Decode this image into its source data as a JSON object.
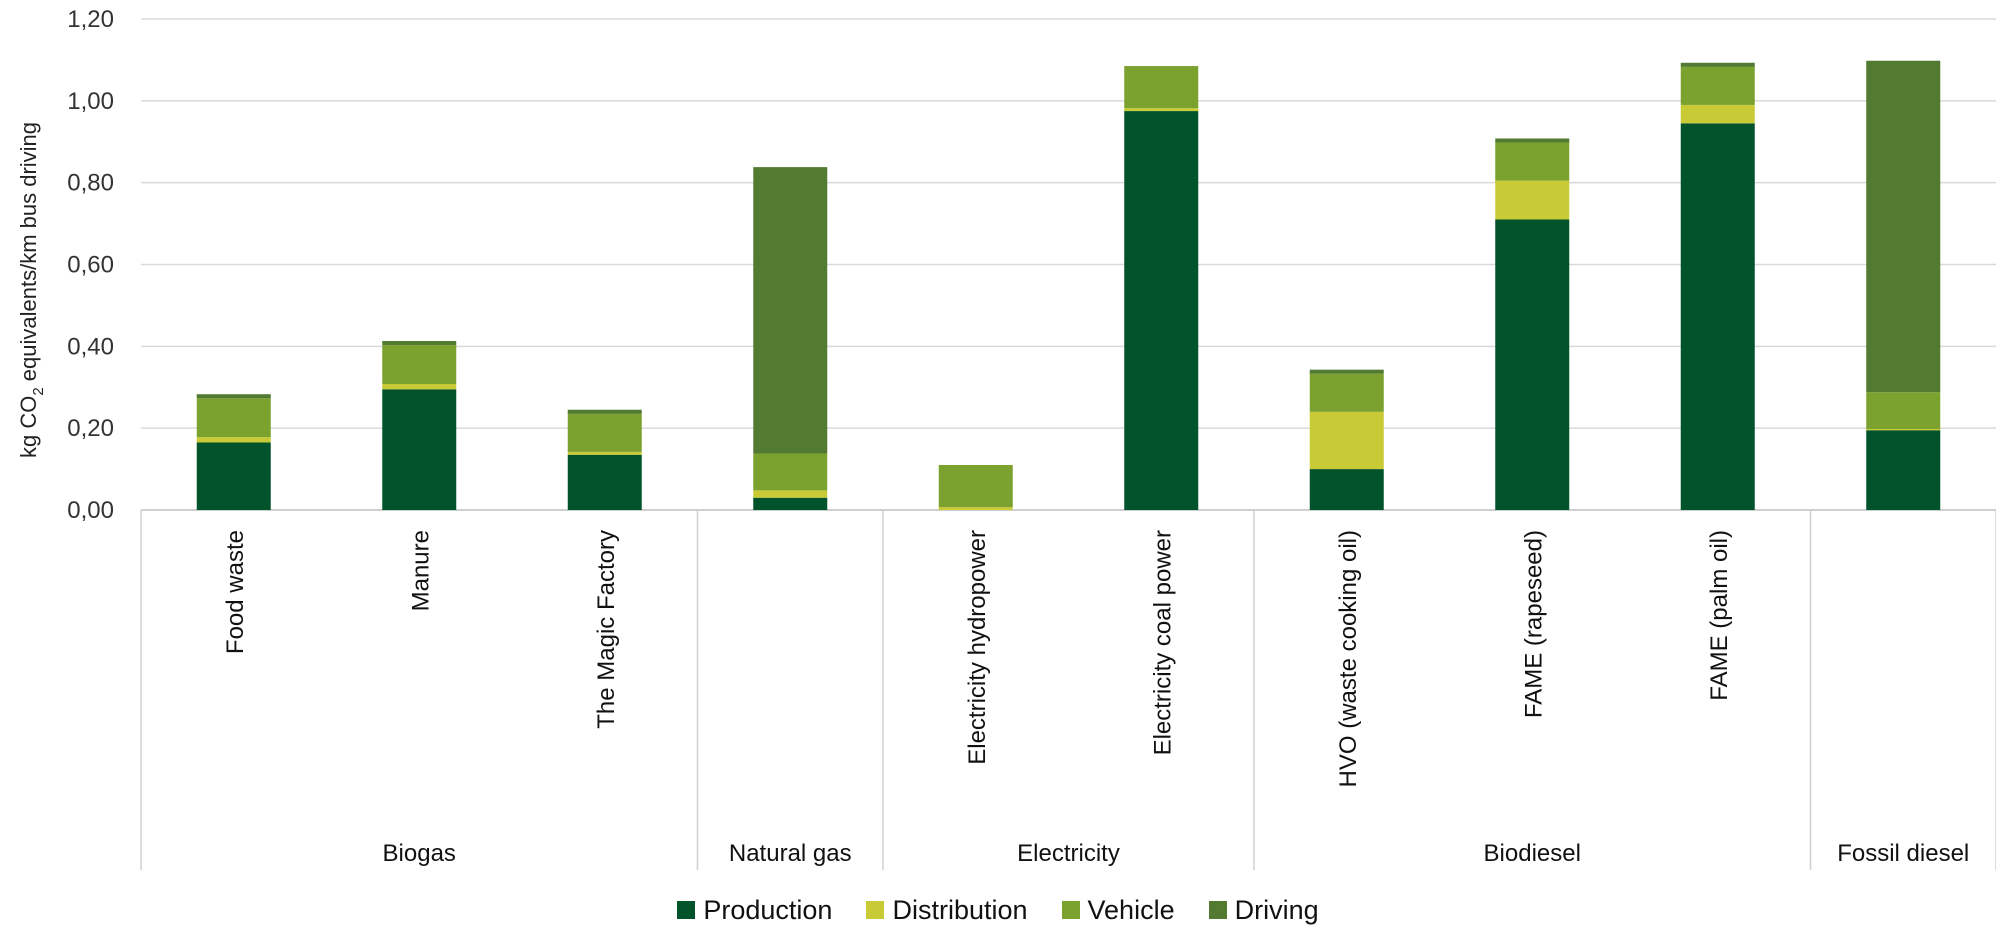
{
  "chart_data": {
    "type": "bar",
    "stacked": true,
    "ylabel": {
      "prefix": "kg CO",
      "subscript": "2",
      "suffix": " equivalents/km bus driving"
    },
    "ylim": [
      0,
      1.2
    ],
    "yticks": [
      "0,00",
      "0,20",
      "0,40",
      "0,60",
      "0,80",
      "1,00",
      "1,20"
    ],
    "grid": true,
    "legend_position": "bottom",
    "categories": [
      "Food waste",
      "Manure",
      "The Magic Factory",
      "",
      "Electricity hydropower",
      "Electricity coal power",
      "HVO (waste cooking oil)",
      "FAME (rapeseed)",
      "FAME (palm oil)",
      ""
    ],
    "groups": [
      {
        "name": "Biogas",
        "count": 3
      },
      {
        "name": "Natural gas",
        "count": 1
      },
      {
        "name": "Electricity",
        "count": 2
      },
      {
        "name": "Biodiesel",
        "count": 3
      },
      {
        "name": "Fossil diesel",
        "count": 1
      }
    ],
    "series": [
      {
        "name": "Production",
        "color": "#00532B",
        "values": [
          0.165,
          0.295,
          0.135,
          0.03,
          0.0,
          0.975,
          0.1,
          0.71,
          0.945,
          0.195
        ]
      },
      {
        "name": "Distribution",
        "color": "#C8CB35",
        "values": [
          0.013,
          0.013,
          0.007,
          0.018,
          0.007,
          0.007,
          0.14,
          0.095,
          0.045,
          0.003
        ]
      },
      {
        "name": "Vehicle",
        "color": "#7BA22F",
        "values": [
          0.095,
          0.095,
          0.093,
          0.09,
          0.103,
          0.103,
          0.093,
          0.093,
          0.093,
          0.09
        ]
      },
      {
        "name": "Driving",
        "color": "#527B31",
        "values": [
          0.01,
          0.01,
          0.01,
          0.7,
          0.0,
          0.0,
          0.01,
          0.01,
          0.01,
          0.81
        ]
      }
    ]
  }
}
